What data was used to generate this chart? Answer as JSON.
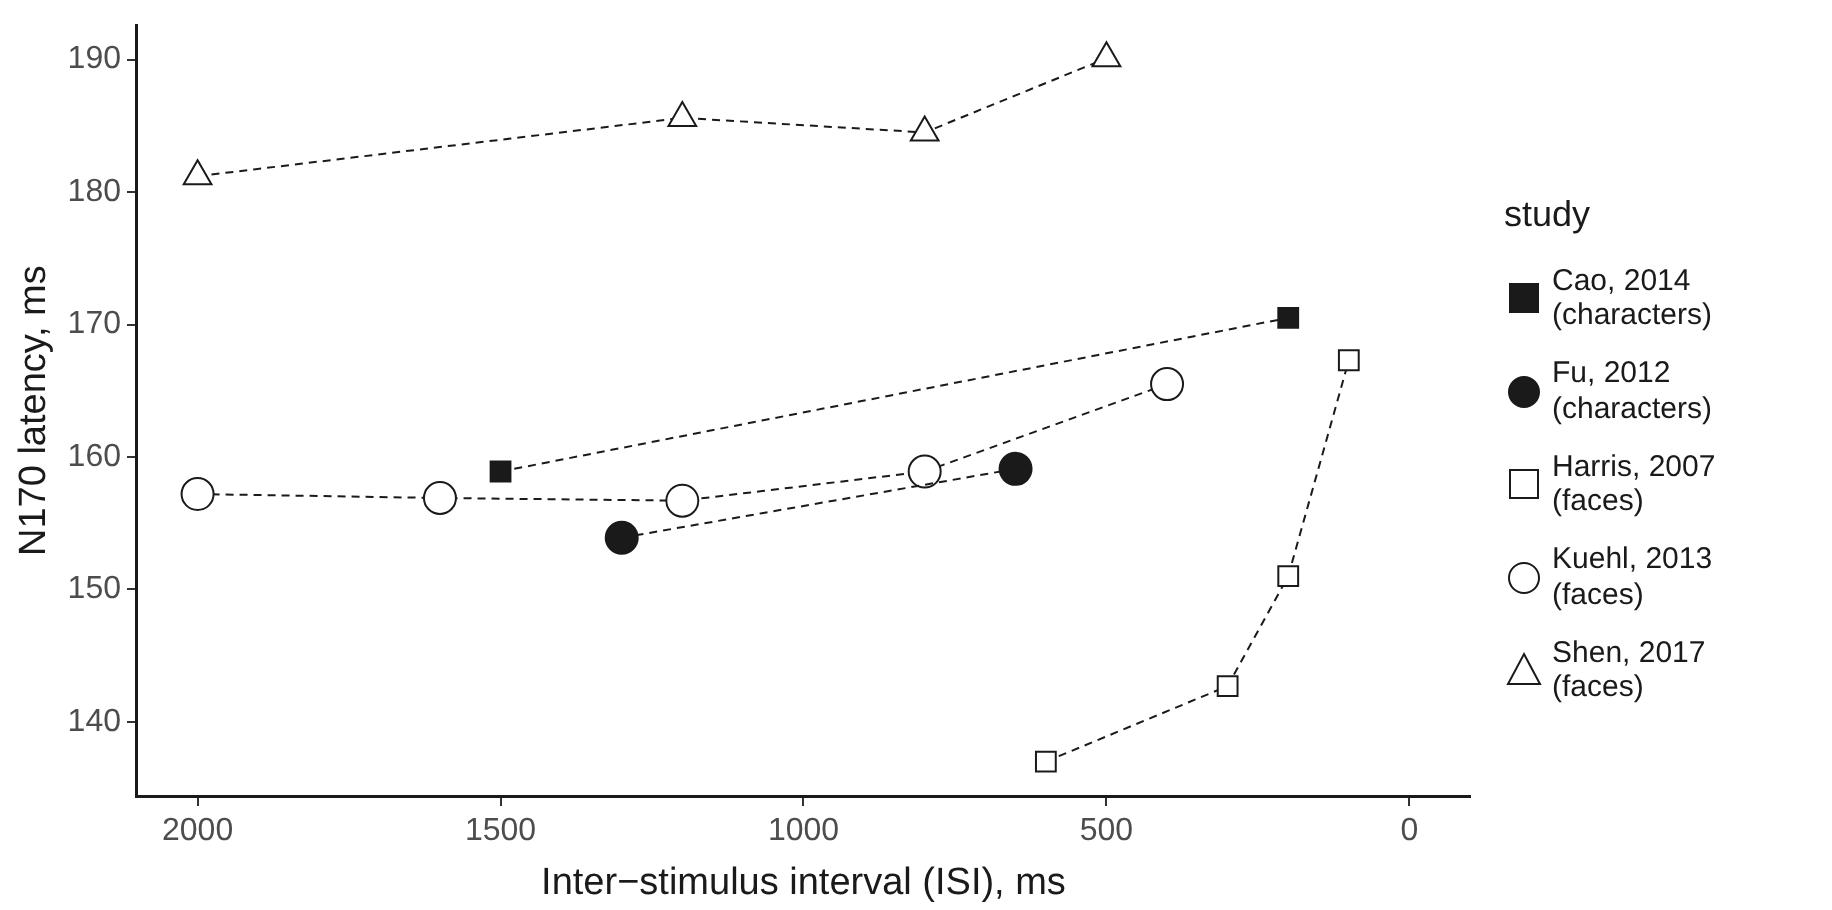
{
  "chart_data": {
    "type": "line",
    "xlabel": "Inter−stimulus interval (ISI), ms",
    "ylabel": "N170 latency, ms",
    "legend_title": "study",
    "legend": "right",
    "grid": false,
    "line_style": "dashed",
    "xlim": [
      2100,
      -100
    ],
    "xticks": [
      2000,
      1500,
      1000,
      500,
      0
    ],
    "ylim": [
      134.4,
      192.6
    ],
    "yticks": [
      140,
      150,
      160,
      170,
      180,
      190
    ],
    "series": [
      {
        "name": "Cao, 2014\n(characters)",
        "color": "#1a1a1a",
        "marker": "square",
        "x": [
          1500,
          200
        ],
        "values": [
          158.9,
          170.5
        ]
      },
      {
        "name": "Fu, 2012\n(characters)",
        "color": "#1a1a1a",
        "marker": "circle",
        "x": [
          1300,
          650
        ],
        "values": [
          153.9,
          159.1
        ]
      },
      {
        "name": "Harris, 2007\n(faces)",
        "color": "#ffffff",
        "marker": "square",
        "x": [
          600,
          300,
          200,
          100
        ],
        "values": [
          137,
          142.7,
          151,
          167.3
        ]
      },
      {
        "name": "Kuehl, 2013\n(faces)",
        "color": "#ffffff",
        "marker": "circle",
        "x": [
          2000,
          1600,
          1200,
          800,
          400
        ],
        "values": [
          157.2,
          156.9,
          156.7,
          158.9,
          165.5
        ]
      },
      {
        "name": "Shen, 2017\n(faces)",
        "color": "#ffffff",
        "marker": "triangle",
        "x": [
          2000,
          1200,
          800,
          500
        ],
        "values": [
          181.2,
          185.6,
          184.5,
          190.1
        ]
      }
    ]
  }
}
